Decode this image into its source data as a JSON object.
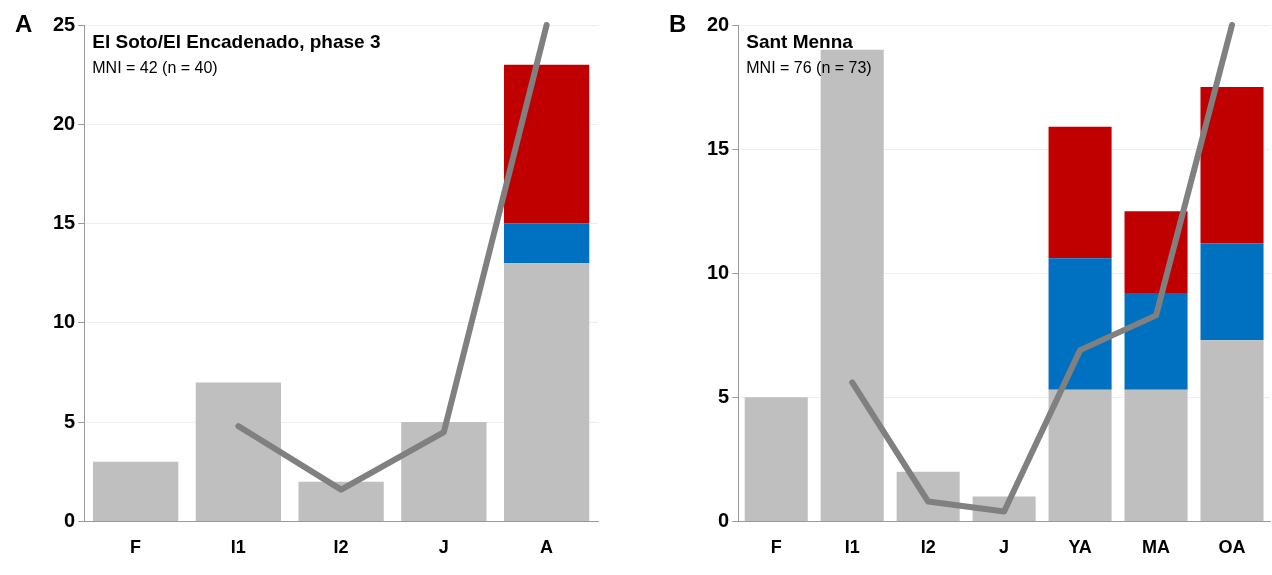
{
  "chart_data": [
    {
      "type": "bar",
      "title": "El Soto/El Encadenado, phase 3",
      "subtitle": "MNI = 42 (n = 40)",
      "annotations": [
        "A"
      ],
      "categories": [
        "F",
        "I1",
        "I2",
        "J",
        "A"
      ],
      "stacked": true,
      "grid": "y",
      "ylim": [
        0,
        25
      ],
      "yticks": [
        0,
        5,
        10,
        15,
        20,
        25
      ],
      "legend": false,
      "series": [
        {
          "color": "#bfbfbf",
          "values": [
            3,
            7,
            2,
            5,
            13
          ]
        },
        {
          "color": "#0070c0",
          "values": [
            0,
            0,
            0,
            0,
            2
          ]
        },
        {
          "color": "#c00000",
          "values": [
            0,
            0,
            0,
            0,
            8
          ]
        },
        {
          "type": "line",
          "color": "#808080",
          "marker": "none",
          "line_style": "solid",
          "values": [
            null,
            4.8,
            1.6,
            4.5,
            25
          ]
        }
      ]
    },
    {
      "type": "bar",
      "title": "Sant Menna",
      "subtitle": "MNI = 76 (n = 73)",
      "annotations": [
        "B"
      ],
      "categories": [
        "F",
        "I1",
        "I2",
        "J",
        "YA",
        "MA",
        "OA"
      ],
      "stacked": true,
      "grid": "y",
      "ylim": [
        0,
        20
      ],
      "yticks": [
        0,
        5,
        10,
        15,
        20
      ],
      "legend": false,
      "series": [
        {
          "color": "#bfbfbf",
          "values": [
            5,
            19,
            2,
            1,
            5.3,
            5.3,
            7.3
          ]
        },
        {
          "color": "#0070c0",
          "values": [
            0,
            0,
            0,
            0,
            5.3,
            3.9,
            3.9
          ]
        },
        {
          "color": "#c00000",
          "values": [
            0,
            0,
            0,
            0,
            5.3,
            3.3,
            6.3
          ]
        },
        {
          "type": "line",
          "color": "#808080",
          "marker": "none",
          "line_style": "solid",
          "values": [
            null,
            5.6,
            0.8,
            0.4,
            6.9,
            8.3,
            20
          ]
        }
      ]
    }
  ]
}
